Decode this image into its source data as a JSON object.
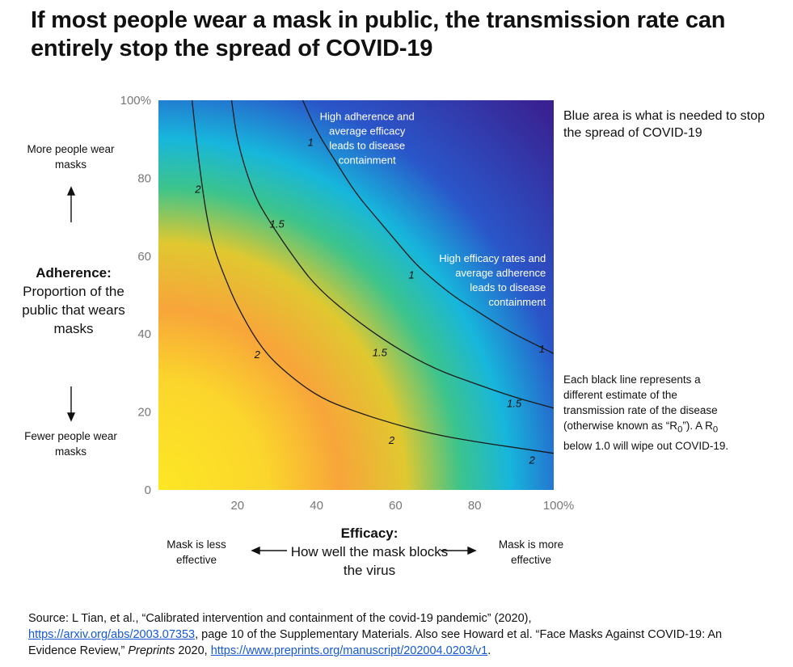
{
  "title": "If most people wear a mask in public, the transmission rate can entirely stop the spread of COVID-19",
  "y_axis": {
    "title": "Adherence:",
    "subtitle": "Proportion of the public that wears masks",
    "top_note": "More people wear masks",
    "bottom_note": "Fewer people wear masks"
  },
  "x_axis": {
    "title": "Efficacy:",
    "subtitle": "How well the mask blocks the virus",
    "left_note": "Mask is less effective",
    "right_note": "Mask is more effective"
  },
  "notes": {
    "blue_area": "Blue area is what is needed to stop the spread of COVID-19",
    "lines_pre": "Each black line represents a different estimate of the transmission rate of the disease (otherwise known as “R",
    "lines_sub": "0",
    "lines_mid": "”). A R",
    "lines_sub2": "0",
    "lines_post": " below 1.0 will wipe out COVID-19."
  },
  "source": {
    "part1": "Source: L Tian, et al., “Calibrated intervention and containment of the covid-19 pandemic” (2020),",
    "link1": "https://arxiv.org/abs/2003.07353",
    "part2": ", page 10 of the Supplementary Materials. Also see Howard et al. “Face Masks Against COVID-19: An Evidence Review,” ",
    "journal": "Preprints",
    "part3": " 2020, ",
    "link2": "https://www.preprints.org/manuscript/202004.0203/v1",
    "part4": "."
  },
  "colors": {
    "low": "#fde724",
    "mid_orange": "#f8a53a",
    "green": "#3cc48c",
    "cyan": "#17b6dc",
    "blue": "#2a56c9",
    "high": "#3a1f8f"
  },
  "chart_data": {
    "type": "heatmap",
    "x_ticks": [
      "0",
      "20",
      "40",
      "60",
      "80",
      "100%"
    ],
    "y_ticks": [
      "0",
      "20",
      "40",
      "60",
      "80",
      "100%"
    ],
    "xlim": [
      0,
      100
    ],
    "ylim": [
      0,
      100
    ],
    "contours": [
      {
        "label": "2",
        "points": [
          [
            8.5,
            100
          ],
          [
            10,
            86
          ],
          [
            12,
            71
          ],
          [
            14,
            62
          ],
          [
            17,
            54
          ],
          [
            20,
            47
          ],
          [
            25,
            38
          ],
          [
            30,
            32
          ],
          [
            40,
            24
          ],
          [
            50,
            20
          ],
          [
            60,
            16.8
          ],
          [
            70,
            14.2
          ],
          [
            80,
            12.4
          ],
          [
            90,
            10.9
          ],
          [
            100,
            9.4
          ]
        ],
        "labels_at": [
          [
            10,
            77
          ],
          [
            25,
            34.5
          ],
          [
            59,
            12.5
          ],
          [
            94.5,
            7.5
          ]
        ]
      },
      {
        "label": "1.5",
        "points": [
          [
            18.5,
            100
          ],
          [
            20,
            89
          ],
          [
            24,
            76
          ],
          [
            28,
            69
          ],
          [
            34,
            60
          ],
          [
            40,
            52
          ],
          [
            50,
            43.5
          ],
          [
            60,
            36.5
          ],
          [
            70,
            31
          ],
          [
            80,
            27.3
          ],
          [
            90,
            23.8
          ],
          [
            100,
            21
          ]
        ],
        "labels_at": [
          [
            30,
            68
          ],
          [
            56,
            35
          ],
          [
            90,
            22
          ]
        ]
      },
      {
        "label": "1",
        "points": [
          [
            36.5,
            100
          ],
          [
            40,
            92
          ],
          [
            45,
            84
          ],
          [
            50,
            76
          ],
          [
            55,
            70
          ],
          [
            60,
            64
          ],
          [
            65,
            58
          ],
          [
            70,
            53.5
          ],
          [
            75,
            49.5
          ],
          [
            80,
            46.3
          ],
          [
            85,
            43
          ],
          [
            90,
            40
          ],
          [
            95,
            37.5
          ],
          [
            100,
            35
          ]
        ],
        "labels_at": [
          [
            38.5,
            89
          ],
          [
            64,
            55
          ],
          [
            97,
            36
          ]
        ]
      }
    ],
    "annotations": [
      {
        "text": "High adherence and average efficacy leads to disease containment",
        "x": 52.8,
        "y": 94.9
      },
      {
        "text": "High efficacy rates and average adherence leads to disease containment",
        "x": 98,
        "y": 58.5
      }
    ]
  }
}
